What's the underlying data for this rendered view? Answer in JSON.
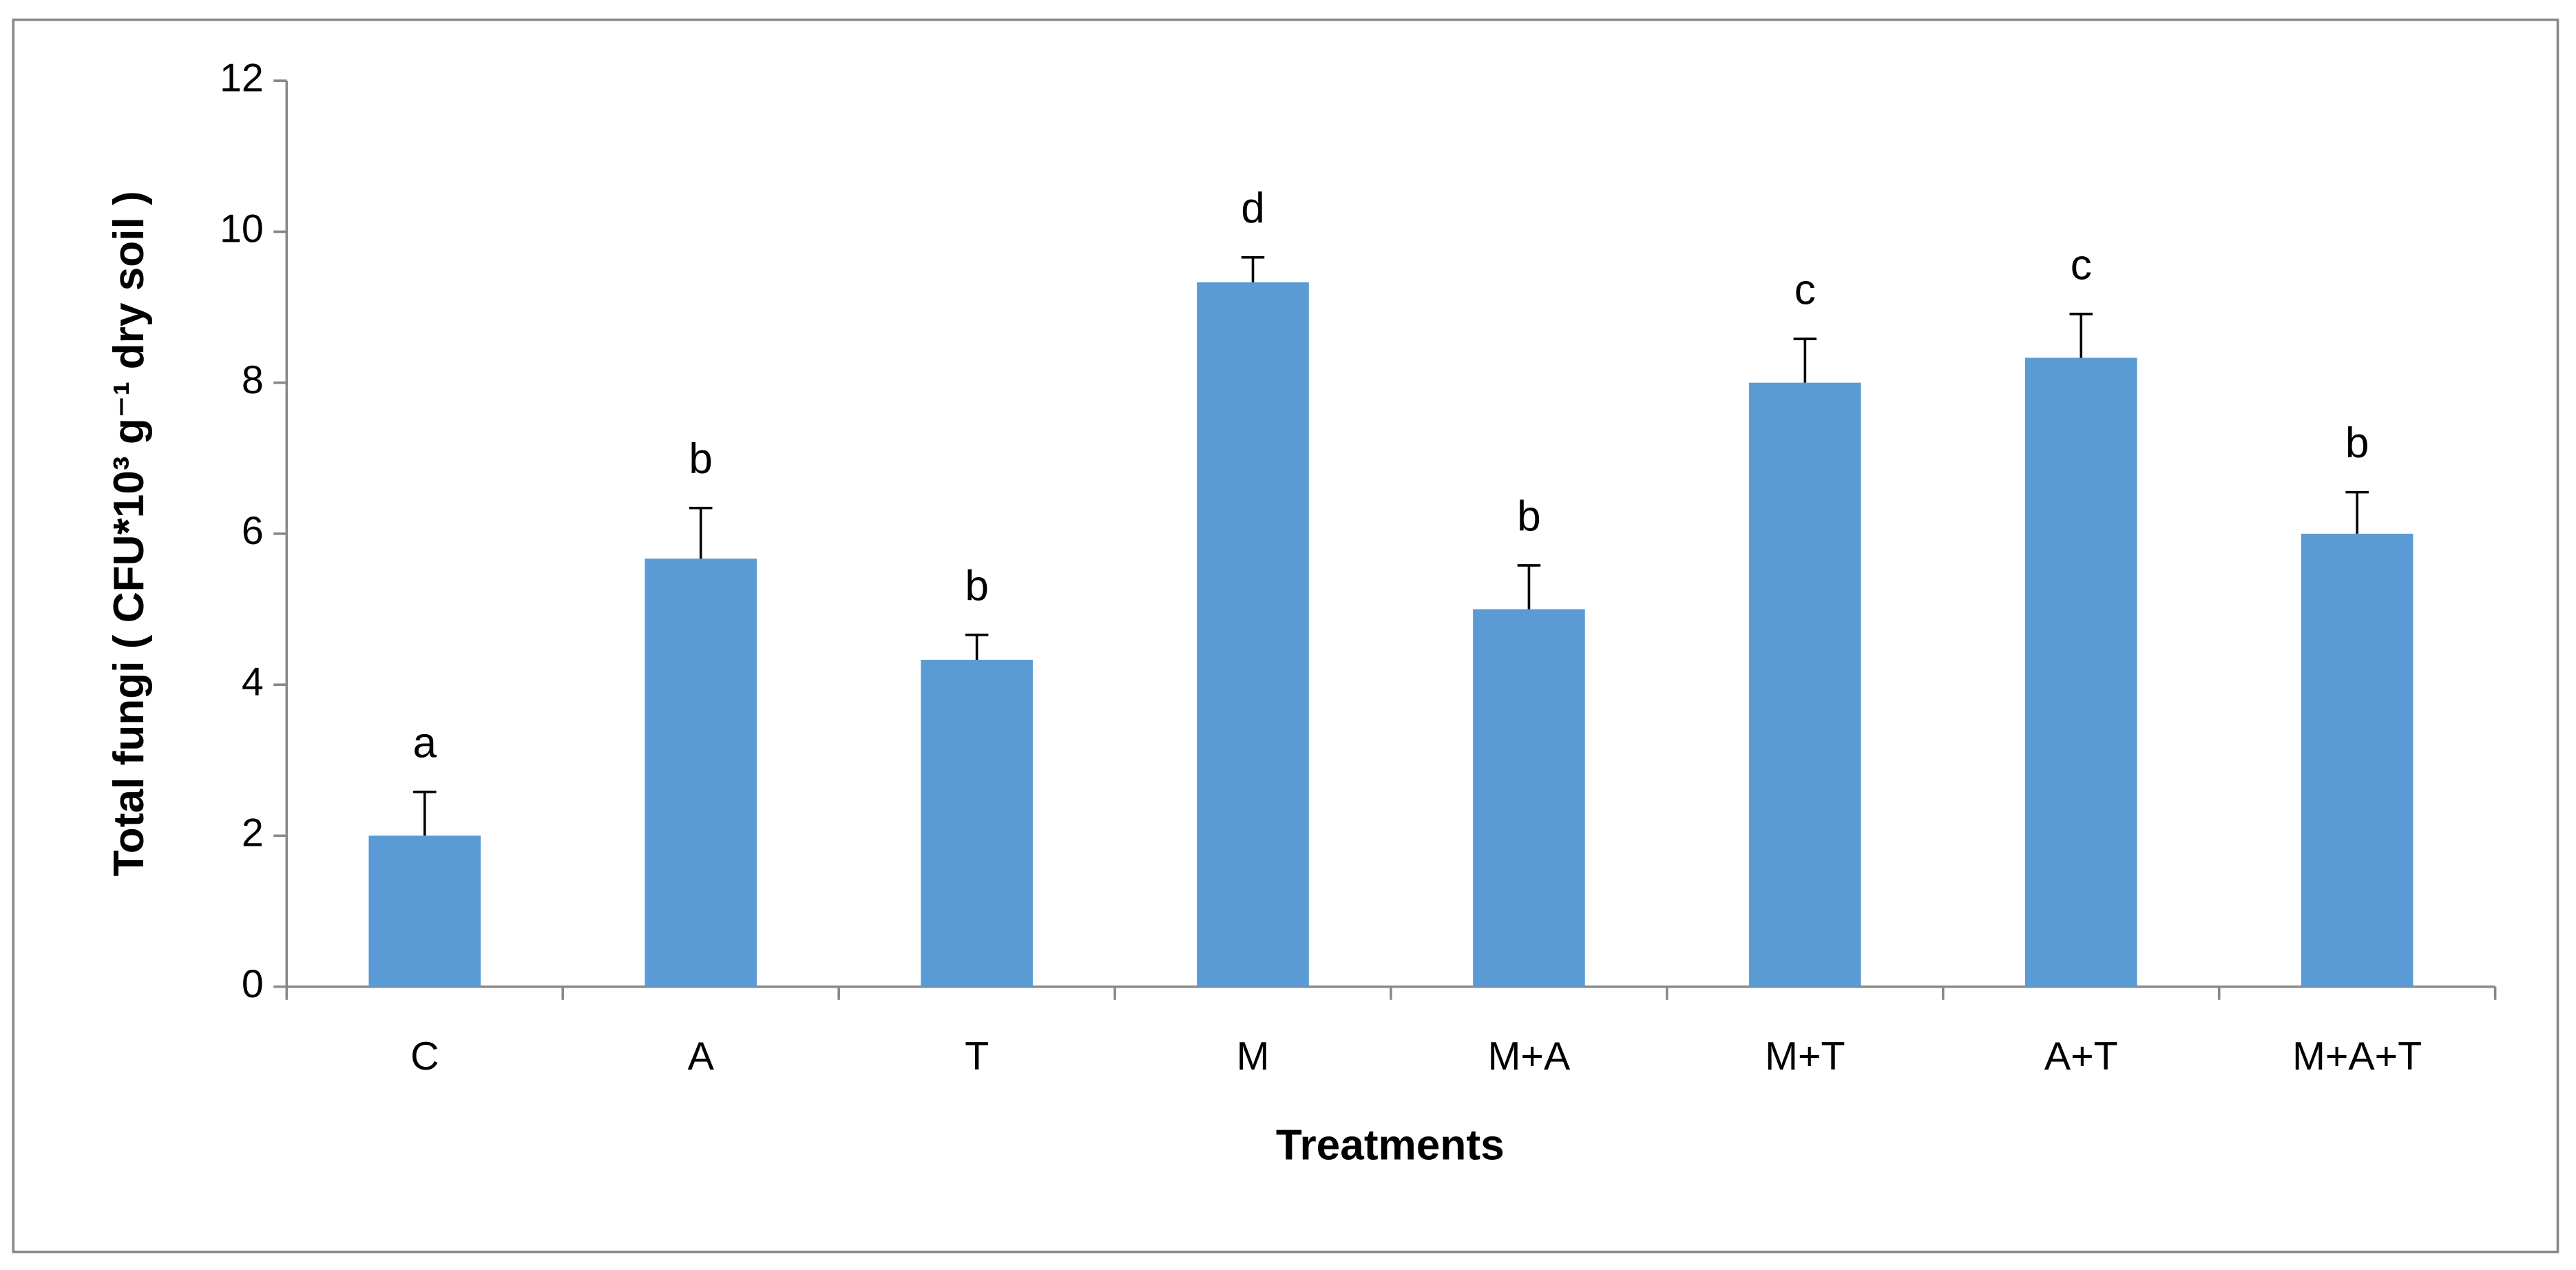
{
  "chart_data": {
    "type": "bar",
    "x_label": "Treatments",
    "y_label": "Total fungi ( CFU*10³ g⁻¹ dry soil )",
    "categories": [
      "C",
      "A",
      "T",
      "M",
      "M+A",
      "M+T",
      "A+T",
      "M+A+T"
    ],
    "values": [
      2,
      5.67,
      4.33,
      9.33,
      5,
      8,
      8.33,
      6
    ],
    "errors": [
      0.58,
      0.67,
      0.33,
      0.33,
      0.58,
      0.58,
      0.58,
      0.55
    ],
    "letters": [
      "a",
      "b",
      "b",
      "d",
      "b",
      "c",
      "c",
      "b"
    ],
    "color": "#5b9bd5",
    "ylim": [
      0,
      12
    ],
    "yticks": [
      0,
      2,
      4,
      6,
      8,
      10,
      12
    ]
  }
}
